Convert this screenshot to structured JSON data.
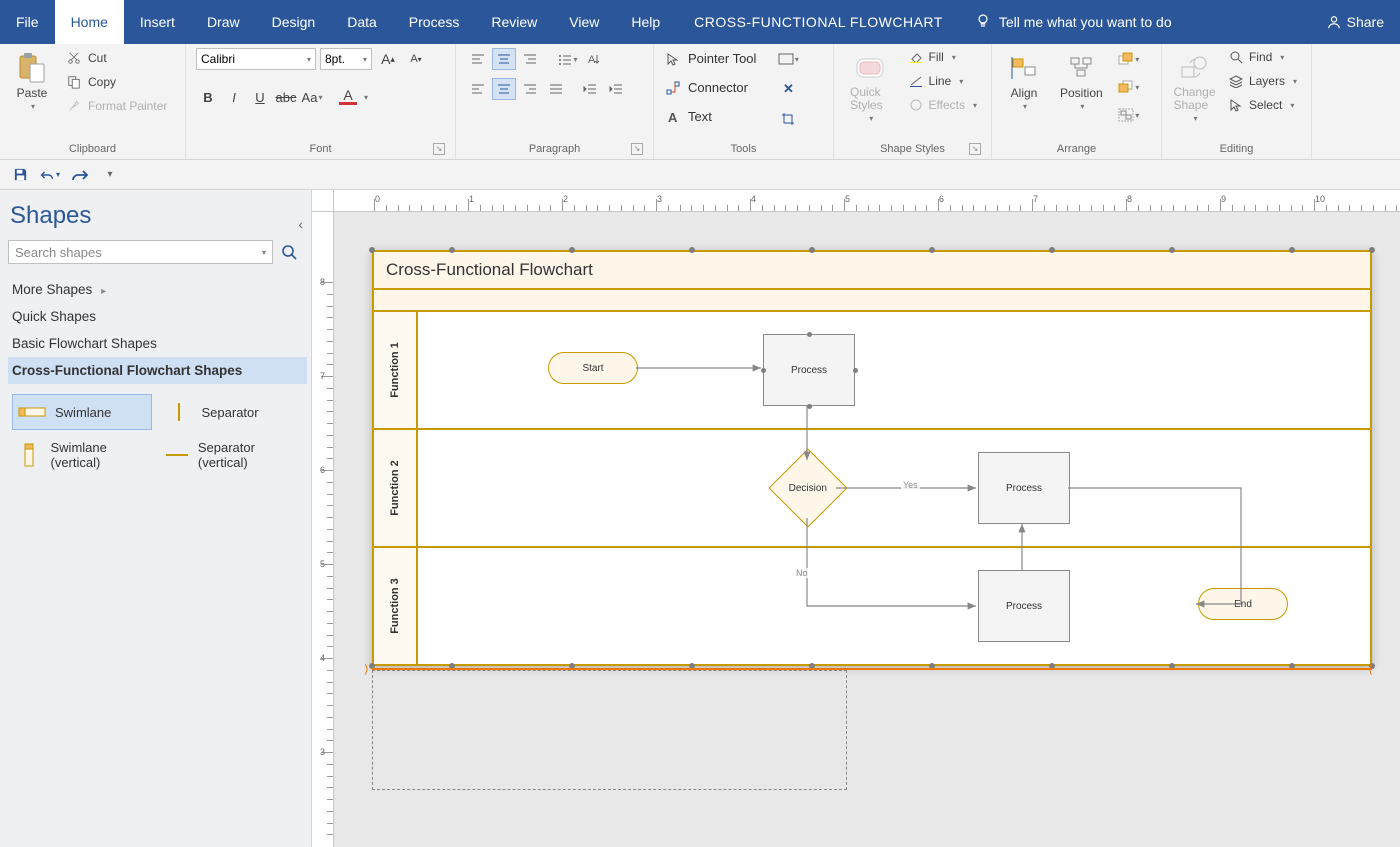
{
  "menubar": {
    "tabs": [
      "File",
      "Home",
      "Insert",
      "Draw",
      "Design",
      "Data",
      "Process",
      "Review",
      "View",
      "Help"
    ],
    "active_tab": "Home",
    "doc_title": "CROSS-FUNCTIONAL FLOWCHART",
    "tell_me": "Tell me what you want to do",
    "share": "Share"
  },
  "ribbon": {
    "clipboard": {
      "paste": "Paste",
      "cut": "Cut",
      "copy": "Copy",
      "format_painter": "Format Painter",
      "label": "Clipboard"
    },
    "font": {
      "name": "Calibri",
      "size": "8pt.",
      "label": "Font",
      "color": "#d13438"
    },
    "paragraph": {
      "label": "Paragraph"
    },
    "tools": {
      "pointer": "Pointer Tool",
      "connector": "Connector",
      "text": "Text",
      "label": "Tools"
    },
    "shape_styles": {
      "quick": "Quick Styles",
      "fill": "Fill",
      "line": "Line",
      "effects": "Effects",
      "label": "Shape Styles"
    },
    "arrange": {
      "align": "Align",
      "position": "Position",
      "label": "Arrange"
    },
    "editing": {
      "change": "Change Shape",
      "find": "Find",
      "layers": "Layers",
      "select": "Select",
      "label": "Editing"
    }
  },
  "shapes_pane": {
    "title": "Shapes",
    "search_placeholder": "Search shapes",
    "categories": [
      "More Shapes",
      "Quick Shapes",
      "Basic Flowchart Shapes",
      "Cross-Functional Flowchart Shapes"
    ],
    "selected_category": "Cross-Functional Flowchart Shapes",
    "stencils": [
      {
        "label": "Swimlane",
        "selected": true
      },
      {
        "label": "Separator",
        "selected": false
      },
      {
        "label": "Swimlane (vertical)",
        "selected": false
      },
      {
        "label": "Separator (vertical)",
        "selected": false
      }
    ]
  },
  "flowchart": {
    "title": "Cross-Functional Flowchart",
    "lanes": [
      "Function 1",
      "Function 2",
      "Function 3"
    ],
    "nodes": {
      "start": "Start",
      "process1": "Process",
      "decision": "Decision",
      "process2": "Process",
      "process3": "Process",
      "end": "End"
    },
    "edge_labels": {
      "yes": "Yes",
      "no": "No"
    }
  },
  "colors": {
    "brand": "#2b579a",
    "swim_border": "#c79a00",
    "swim_fill": "#fdf6e9",
    "selection": "#f07800"
  },
  "ruler": {
    "h_labels": [
      "0",
      "1",
      "2",
      "3",
      "4",
      "5",
      "6",
      "7",
      "8",
      "9",
      "10"
    ],
    "v_labels": [
      "8",
      "7",
      "6",
      "5",
      "4",
      "3"
    ]
  }
}
